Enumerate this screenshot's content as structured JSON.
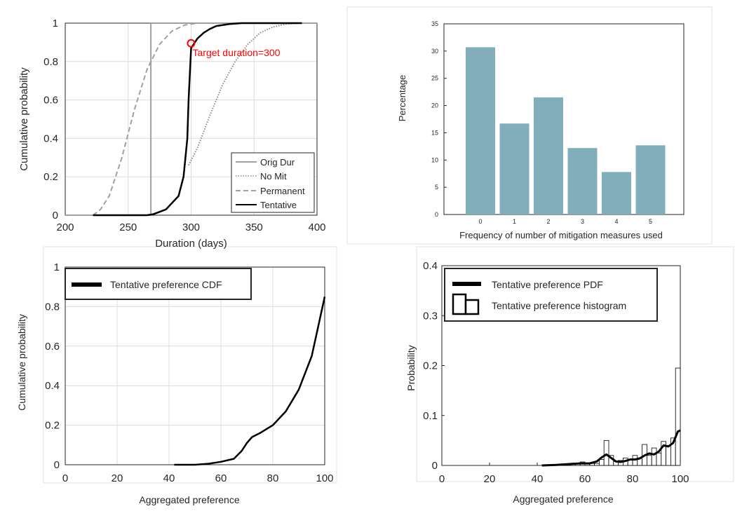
{
  "chart_data": [
    {
      "type": "line",
      "xlabel": "Duration (days)",
      "ylabel": "Cumulative probability",
      "xlim": [
        200,
        400
      ],
      "ylim": [
        0,
        1
      ],
      "xticks": [
        "200",
        "250",
        "300",
        "350",
        "400"
      ],
      "yticks": [
        "0",
        "0.2",
        "0.4",
        "0.6",
        "0.8",
        "1"
      ],
      "grid": true,
      "legend_position": "bottom-right",
      "series": [
        {
          "name": "Orig Dur",
          "color": "#a0a0a0",
          "dash": "solid",
          "x": [
            200,
            268,
            268,
            400
          ],
          "y": [
            0,
            0,
            1,
            1
          ]
        },
        {
          "name": "No Mit",
          "color": "#8c8c8c",
          "dash": "dotted",
          "x": [
            298,
            305,
            315,
            325,
            335,
            345,
            355,
            365,
            375,
            385
          ],
          "y": [
            0.26,
            0.35,
            0.52,
            0.68,
            0.8,
            0.89,
            0.95,
            0.98,
            0.995,
            1.0
          ]
        },
        {
          "name": "Permanent",
          "color": "#a0a0a0",
          "dash": "dashed",
          "x": [
            222,
            228,
            235,
            245,
            255,
            265,
            275,
            285,
            295,
            305,
            315
          ],
          "y": [
            0.0,
            0.03,
            0.1,
            0.3,
            0.55,
            0.76,
            0.89,
            0.96,
            0.99,
            1.0,
            1.0
          ]
        },
        {
          "name": "Tentative",
          "color": "#000000",
          "dash": "solid",
          "x": [
            222,
            265,
            270,
            280,
            290,
            294,
            297,
            298,
            300,
            305,
            310,
            315,
            320,
            330,
            340,
            350,
            360,
            388
          ],
          "y": [
            0.0,
            0.0,
            0.005,
            0.03,
            0.1,
            0.2,
            0.4,
            0.6,
            0.87,
            0.92,
            0.95,
            0.97,
            0.985,
            0.995,
            1.0,
            1.0,
            1.0,
            1.0
          ]
        }
      ],
      "annotation": {
        "text": "Target duration=300",
        "x": 300,
        "y": 0.895,
        "color": "#ff0000"
      }
    },
    {
      "type": "bar",
      "xlabel": "Frequency of number of mitigation measures used",
      "ylabel": "Percentage",
      "categories": [
        "0",
        "1",
        "2",
        "3",
        "4",
        "5"
      ],
      "values": [
        30.7,
        16.7,
        21.5,
        12.2,
        7.8,
        12.7
      ],
      "ylim": [
        0,
        35
      ],
      "yticks": [
        "0",
        "5",
        "10",
        "15",
        "20",
        "25",
        "30",
        "35"
      ],
      "grid": false,
      "color": "#82aebb"
    },
    {
      "type": "line",
      "xlabel": "Aggregated preference",
      "ylabel": "Cumulative probability",
      "xlim": [
        0,
        100
      ],
      "ylim": [
        0,
        1
      ],
      "xticks": [
        "0",
        "20",
        "40",
        "60",
        "80",
        "100"
      ],
      "yticks": [
        "0",
        "0.2",
        "0.4",
        "0.6",
        "0.8",
        "1"
      ],
      "grid": true,
      "legend_position": "top-left",
      "series": [
        {
          "name": "Tentative preference CDF",
          "color": "#000000",
          "x": [
            42,
            50,
            55,
            60,
            65,
            68,
            70,
            72,
            75,
            80,
            85,
            90,
            95,
            100
          ],
          "y": [
            0.0,
            0.0,
            0.005,
            0.015,
            0.03,
            0.07,
            0.11,
            0.14,
            0.16,
            0.2,
            0.27,
            0.38,
            0.55,
            0.85
          ]
        }
      ]
    },
    {
      "type": "bar",
      "xlabel": "Aggregated preference",
      "ylabel": "Probability",
      "xlim": [
        0,
        100
      ],
      "ylim": [
        0,
        0.4
      ],
      "xticks": [
        "0",
        "20",
        "40",
        "60",
        "80",
        "100"
      ],
      "yticks": [
        "0",
        "0.1",
        "0.2",
        "0.3",
        "0.4"
      ],
      "grid": false,
      "legend_position": "top-left",
      "histogram": {
        "name": "Tentative preference histogram",
        "bin_width": 2,
        "bin_starts": [
          42,
          44,
          46,
          48,
          50,
          52,
          54,
          56,
          58,
          60,
          62,
          64,
          66,
          68,
          70,
          72,
          74,
          76,
          78,
          80,
          82,
          84,
          86,
          88,
          90,
          92,
          94,
          96,
          98
        ],
        "values": [
          0.001,
          0.001,
          0.001,
          0.002,
          0.002,
          0.002,
          0.003,
          0.003,
          0.007,
          0.004,
          0.004,
          0.004,
          0.012,
          0.05,
          0.02,
          0.008,
          0.01,
          0.015,
          0.012,
          0.02,
          0.015,
          0.042,
          0.02,
          0.035,
          0.025,
          0.048,
          0.04,
          0.055,
          0.195
        ]
      },
      "pdf": {
        "name": "Tentative preference PDF",
        "x": [
          42,
          48,
          54,
          58,
          62,
          65,
          67,
          69,
          71,
          73,
          75,
          77,
          79,
          81,
          83,
          85,
          87,
          89,
          91,
          93,
          95,
          97,
          99,
          100
        ],
        "y": [
          0.0,
          0.001,
          0.003,
          0.004,
          0.004,
          0.008,
          0.016,
          0.022,
          0.015,
          0.008,
          0.007,
          0.009,
          0.012,
          0.012,
          0.014,
          0.02,
          0.024,
          0.022,
          0.028,
          0.04,
          0.038,
          0.045,
          0.068,
          0.07
        ]
      }
    }
  ]
}
